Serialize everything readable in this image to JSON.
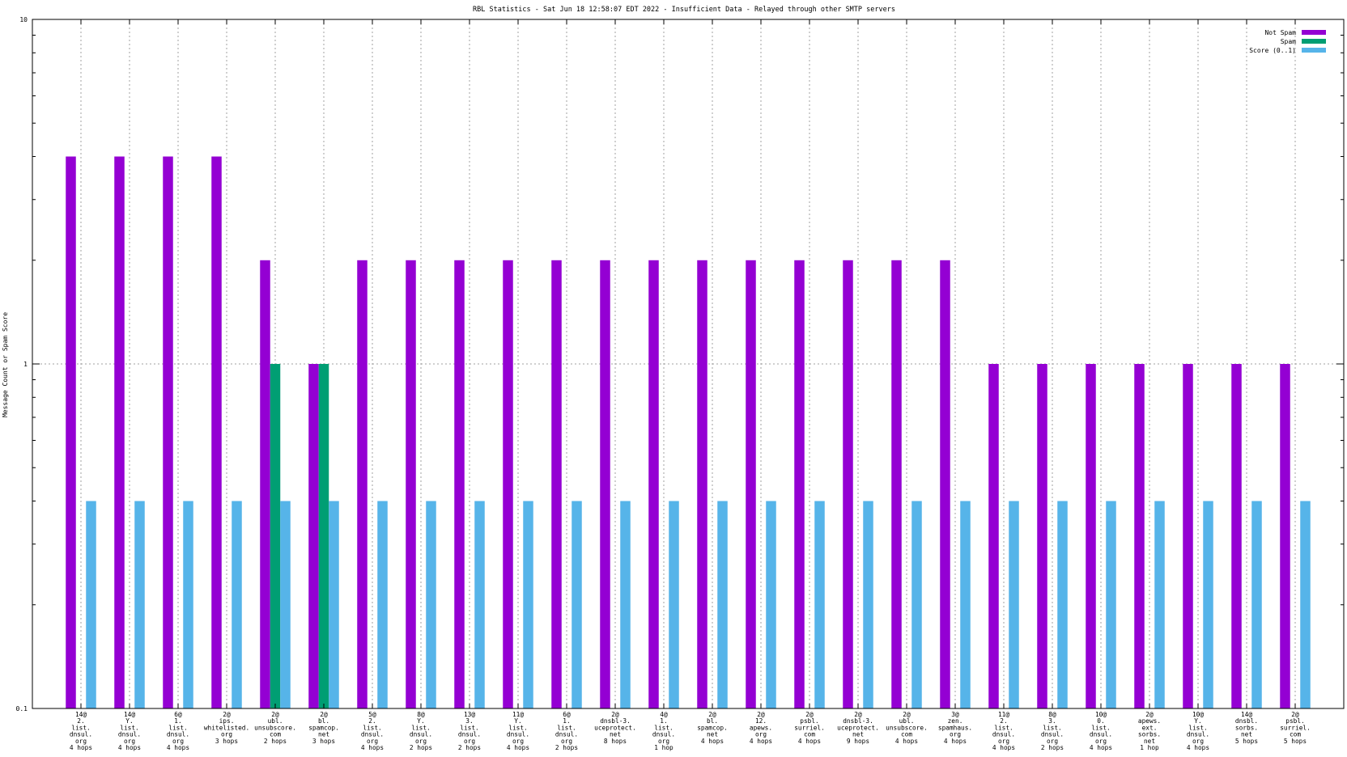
{
  "chart_data": {
    "type": "bar",
    "title": "RBL Statistics - Sat Jun 18 12:58:07 EDT 2022 - Insufficient Data - Relayed through other SMTP servers",
    "xlabel": "",
    "ylabel": "Message Count or Spam Score",
    "yscale": "log",
    "ylim": [
      0.1,
      10
    ],
    "yticks": [
      "0.1",
      "1",
      "10"
    ],
    "grid": "dotted vertical lines at each category, dotted horizontal line at 1",
    "legend_position": "top-right",
    "categories": [
      [
        "14@",
        "2.",
        "list.",
        "dnsul.",
        "org",
        "4 hops"
      ],
      [
        "14@",
        "Y.",
        "list.",
        "dnsul.",
        "org",
        "4 hops"
      ],
      [
        "6@",
        "1.",
        "list.",
        "dnsul.",
        "org",
        "4 hops"
      ],
      [
        "2@",
        "ips.",
        "whitelisted.",
        "org",
        "3 hops"
      ],
      [
        "2@",
        "ubl.",
        "unsubscore.",
        "com",
        "2 hops"
      ],
      [
        "2@",
        "bl.",
        "spamcop.",
        "net",
        "3 hops"
      ],
      [
        "5@",
        "2.",
        "list.",
        "dnsul.",
        "org",
        "4 hops"
      ],
      [
        "8@",
        "Y.",
        "list.",
        "dnsul.",
        "org",
        "2 hops"
      ],
      [
        "13@",
        "3.",
        "list.",
        "dnsul.",
        "org",
        "2 hops"
      ],
      [
        "11@",
        "Y.",
        "list.",
        "dnsul.",
        "org",
        "4 hops"
      ],
      [
        "6@",
        "1.",
        "list.",
        "dnsul.",
        "org",
        "2 hops"
      ],
      [
        "2@",
        "dnsbl-3.",
        "uceprotect.",
        "net",
        "8 hops"
      ],
      [
        "4@",
        "1.",
        "list.",
        "dnsul.",
        "org",
        "1 hop"
      ],
      [
        "2@",
        "bl.",
        "spamcop.",
        "net",
        "4 hops"
      ],
      [
        "2@",
        "12.",
        "apews.",
        "org",
        "4 hops"
      ],
      [
        "2@",
        "psbl.",
        "surriel.",
        "com",
        "4 hops"
      ],
      [
        "2@",
        "dnsbl-3.",
        "uceprotect.",
        "net",
        "9 hops"
      ],
      [
        "2@",
        "ubl.",
        "unsubscore.",
        "com",
        "4 hops"
      ],
      [
        "3@",
        "zen.",
        "spamhaus.",
        "org",
        "4 hops"
      ],
      [
        "11@",
        "2.",
        "list.",
        "dnsul.",
        "org",
        "4 hops"
      ],
      [
        "8@",
        "3.",
        "list.",
        "dnsul.",
        "org",
        "2 hops"
      ],
      [
        "10@",
        "0.",
        "list.",
        "dnsul.",
        "org",
        "4 hops"
      ],
      [
        "2@",
        "apews.",
        "ext.",
        "sorbs.",
        "net",
        "1 hop"
      ],
      [
        "10@",
        "Y.",
        "list.",
        "dnsul.",
        "org",
        "4 hops"
      ],
      [
        "14@",
        "dnsbl.",
        "sorbs.",
        "net",
        "5 hops"
      ],
      [
        "2@",
        "psbl.",
        "surriel.",
        "com",
        "5 hops"
      ]
    ],
    "series": [
      {
        "name": "Not Spam",
        "color": "#9400d3",
        "values": [
          4,
          4,
          4,
          4,
          2,
          1,
          2,
          2,
          2,
          2,
          2,
          2,
          2,
          2,
          2,
          2,
          2,
          2,
          2,
          1,
          1,
          1,
          1,
          1,
          1,
          1
        ]
      },
      {
        "name": "Spam",
        "color": "#009e73",
        "values": [
          null,
          null,
          null,
          null,
          1,
          1,
          null,
          null,
          null,
          null,
          null,
          null,
          null,
          null,
          null,
          null,
          null,
          null,
          null,
          null,
          null,
          null,
          null,
          null,
          null,
          null
        ]
      },
      {
        "name": "Score (0..1)",
        "color": "#56b4e9",
        "values": [
          0.4,
          0.4,
          0.4,
          0.4,
          0.4,
          0.4,
          0.4,
          0.4,
          0.4,
          0.4,
          0.4,
          0.4,
          0.4,
          0.4,
          0.4,
          0.4,
          0.4,
          0.4,
          0.4,
          0.4,
          0.4,
          0.4,
          0.4,
          0.4,
          0.4,
          0.4
        ]
      }
    ]
  }
}
